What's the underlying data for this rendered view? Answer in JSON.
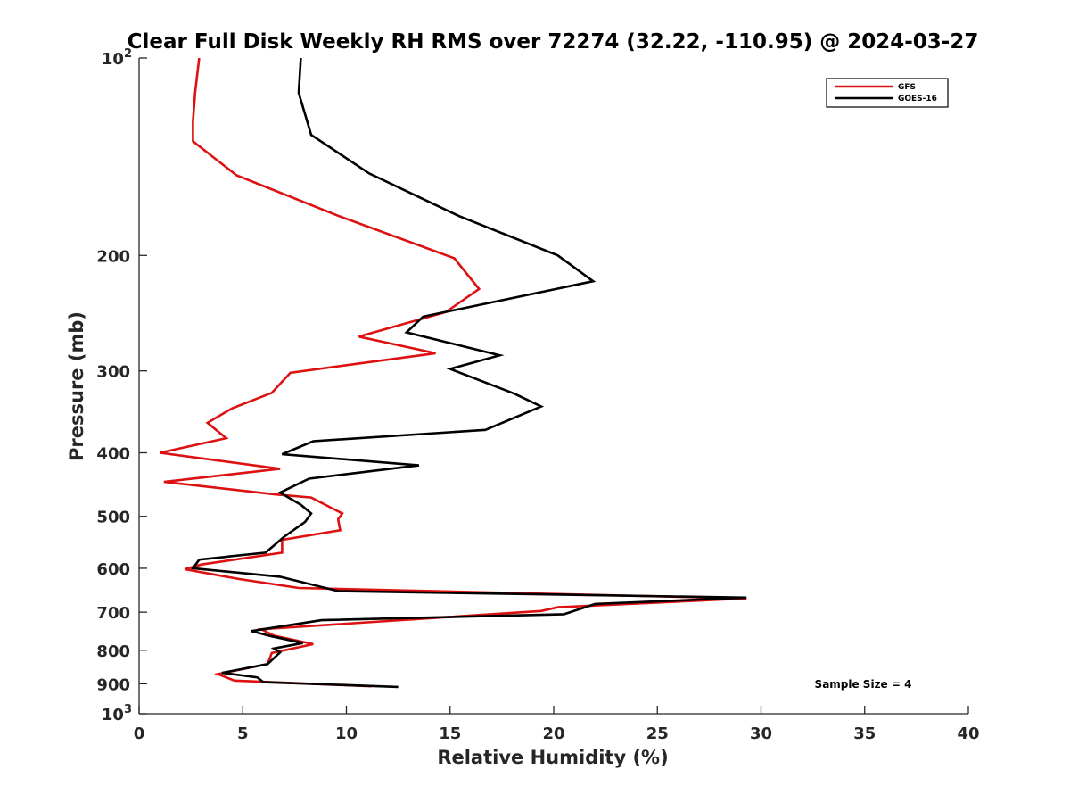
{
  "chart_data": {
    "type": "line",
    "title": "Clear Full Disk Weekly RH RMS over 72274 (32.22, -110.95) @ 2024-03-27",
    "xlabel": "Relative Humidity (%)",
    "ylabel": "Pressure (mb)",
    "xlim": [
      0,
      40
    ],
    "ylim": [
      100,
      1000
    ],
    "yscale": "log",
    "y_reversed": true,
    "grid": false,
    "x_ticks": [
      "0",
      "5",
      "10",
      "15",
      "20",
      "25",
      "30",
      "35",
      "40"
    ],
    "y_ticks": [
      {
        "value": 100,
        "base": "10",
        "exp": "2"
      },
      {
        "value": 200,
        "label": "200"
      },
      {
        "value": 300,
        "label": "300"
      },
      {
        "value": 400,
        "label": "400"
      },
      {
        "value": 500,
        "label": "500"
      },
      {
        "value": 600,
        "label": "600"
      },
      {
        "value": 700,
        "label": "700"
      },
      {
        "value": 800,
        "label": "800"
      },
      {
        "value": 900,
        "label": "900"
      },
      {
        "value": 1000,
        "base": "10",
        "exp": "3"
      }
    ],
    "legend_position": "top-right",
    "annotation": "Sample Size = 4",
    "series": [
      {
        "name": "GFS",
        "color": "#dd1111",
        "points": [
          [
            2.9,
            100
          ],
          [
            2.7,
            113
          ],
          [
            2.6,
            125
          ],
          [
            2.6,
            134
          ],
          [
            4.7,
            151
          ],
          [
            9.6,
            174
          ],
          [
            15.2,
            202
          ],
          [
            16.4,
            225
          ],
          [
            14.8,
            244
          ],
          [
            10.6,
            266
          ],
          [
            14.3,
            282
          ],
          [
            7.3,
            302
          ],
          [
            6.4,
            324
          ],
          [
            4.5,
            342
          ],
          [
            3.3,
            360
          ],
          [
            4.2,
            380
          ],
          [
            1.0,
            400
          ],
          [
            6.8,
            423
          ],
          [
            1.2,
            443
          ],
          [
            6.6,
            463
          ],
          [
            8.3,
            468
          ],
          [
            9.8,
            495
          ],
          [
            9.6,
            505
          ],
          [
            9.7,
            525
          ],
          [
            6.9,
            543
          ],
          [
            6.9,
            568
          ],
          [
            3.0,
            592
          ],
          [
            2.2,
            602
          ],
          [
            4.8,
            623
          ],
          [
            7.7,
            643
          ],
          [
            29.3,
            667
          ],
          [
            20.2,
            688
          ],
          [
            19.4,
            697
          ],
          [
            5.9,
            743
          ],
          [
            6.5,
            760
          ],
          [
            8.4,
            783
          ],
          [
            6.4,
            808
          ],
          [
            6.2,
            840
          ],
          [
            3.8,
            870
          ],
          [
            4.6,
            890
          ],
          [
            11.2,
            908
          ]
        ]
      },
      {
        "name": "GOES-16",
        "color": "#000000",
        "points": [
          [
            7.8,
            100
          ],
          [
            7.7,
            113
          ],
          [
            8.3,
            131
          ],
          [
            11.1,
            150
          ],
          [
            15.4,
            174
          ],
          [
            20.2,
            200
          ],
          [
            21.9,
            219
          ],
          [
            13.7,
            248
          ],
          [
            12.9,
            262
          ],
          [
            17.4,
            284
          ],
          [
            15.0,
            298
          ],
          [
            18.1,
            325
          ],
          [
            19.4,
            340
          ],
          [
            16.7,
            369
          ],
          [
            8.4,
            384
          ],
          [
            6.9,
            402
          ],
          [
            13.5,
            418
          ],
          [
            8.2,
            438
          ],
          [
            6.8,
            460
          ],
          [
            7.8,
            480
          ],
          [
            8.3,
            495
          ],
          [
            8.0,
            510
          ],
          [
            7.0,
            537
          ],
          [
            6.1,
            568
          ],
          [
            2.9,
            582
          ],
          [
            2.6,
            600
          ],
          [
            6.8,
            618
          ],
          [
            9.6,
            650
          ],
          [
            29.3,
            665
          ],
          [
            22.0,
            680
          ],
          [
            20.5,
            705
          ],
          [
            8.8,
            720
          ],
          [
            5.4,
            748
          ],
          [
            6.4,
            762
          ],
          [
            7.9,
            780
          ],
          [
            6.5,
            795
          ],
          [
            6.8,
            806
          ],
          [
            6.2,
            840
          ],
          [
            4.0,
            866
          ],
          [
            5.7,
            880
          ],
          [
            6.0,
            895
          ],
          [
            12.5,
            910
          ]
        ]
      }
    ]
  }
}
